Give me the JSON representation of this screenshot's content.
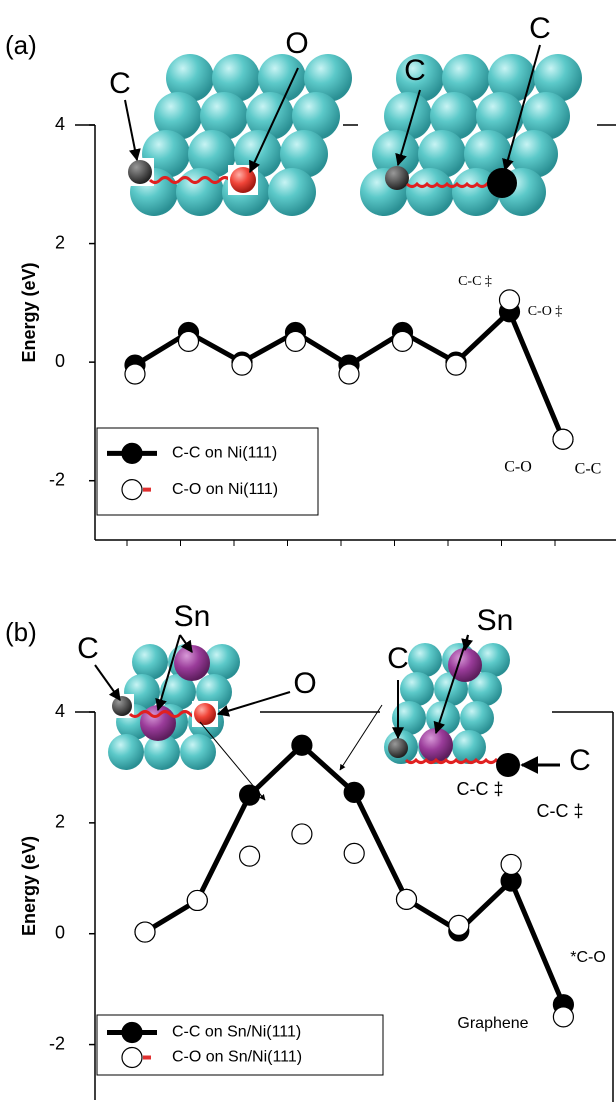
{
  "chart_data": [
    {
      "type": "line",
      "panel_label": "(a)",
      "ylabel": "Energy (eV)",
      "categories": [
        null,
        null,
        null,
        null,
        null,
        null,
        null,
        null,
        null
      ],
      "ylim": [
        -3,
        4
      ],
      "yticks": [
        -2,
        0,
        2,
        4
      ],
      "series": [
        {
          "name": "C-C on Ni(111)",
          "color": "#000000",
          "line": true,
          "values": [
            -0.05,
            0.5,
            0.0,
            0.5,
            -0.05,
            0.5,
            0.0,
            0.85,
            -1.3
          ]
        },
        {
          "name": "C-O on Ni(111)",
          "color": "#ffffff",
          "line": false,
          "legend_line_color": "#e03030",
          "values": [
            -0.2,
            0.35,
            -0.05,
            0.35,
            -0.2,
            0.35,
            -0.05,
            1.05,
            -1.3
          ]
        }
      ],
      "atom_labels": [
        "C",
        "O",
        "C",
        "C"
      ],
      "annotations": [
        "C-C ‡",
        "C-O ‡",
        "C-O",
        "C-C"
      ]
    },
    {
      "type": "line",
      "panel_label": "(b)",
      "ylabel": "Energy (eV)",
      "categories": [
        null,
        null,
        null,
        null,
        null,
        null,
        null,
        null,
        null
      ],
      "ylim": [
        -3,
        4
      ],
      "yticks": [
        -2,
        0,
        2,
        4
      ],
      "series": [
        {
          "name": "C-C on Sn/Ni(111)",
          "color": "#000000",
          "line": true,
          "values": [
            0.03,
            0.6,
            2.5,
            3.4,
            2.55,
            0.62,
            0.05,
            0.95,
            -1.28
          ]
        },
        {
          "name": "C-O on Sn/Ni(111)",
          "color": "#ffffff",
          "line": false,
          "legend_line_color": "#e03030",
          "values": [
            0.03,
            0.6,
            1.4,
            1.8,
            1.45,
            0.62,
            0.15,
            1.25,
            -1.5
          ]
        }
      ],
      "atom_labels": [
        "C",
        "Sn",
        "O",
        "C",
        "Sn",
        "C"
      ],
      "annotations": [
        "C-C ‡",
        "C-C ‡",
        "*C-O",
        "Graphene"
      ]
    }
  ]
}
